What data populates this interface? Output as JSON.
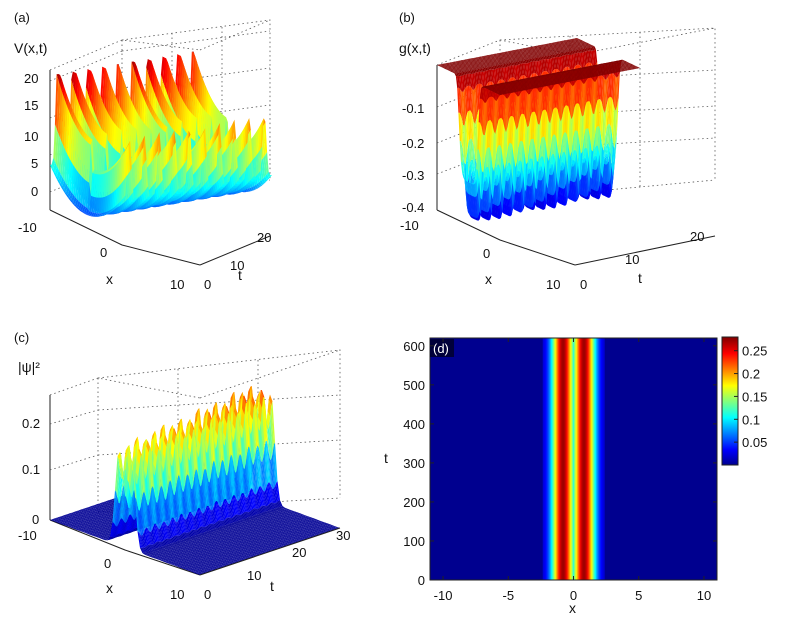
{
  "chart_data": [
    {
      "panel": "(a)",
      "type": "surface3d",
      "zlabel": "V(x,t)",
      "xlabel": "x",
      "ylabel": "t",
      "x_ticks": [
        "-10",
        "0",
        "10"
      ],
      "t_ticks": [
        "0",
        "10",
        "20"
      ],
      "z_ticks": [
        "0",
        "5",
        "10",
        "15",
        "20"
      ],
      "xlim": [
        -10,
        10
      ],
      "tlim": [
        0,
        23
      ],
      "zlim": [
        -3,
        22
      ],
      "x_peak_front": [
        21,
        22,
        23,
        22,
        21
      ],
      "x_peak_back": [
        20,
        18,
        17,
        19,
        18
      ],
      "colormap": "jet"
    },
    {
      "panel": "(b)",
      "type": "surface3d",
      "zlabel": "g(x,t)",
      "xlabel": "x",
      "ylabel": "t",
      "x_ticks": [
        "-10",
        "0",
        "10"
      ],
      "t_ticks": [
        "0",
        "10",
        "20"
      ],
      "z_ticks": [
        "-0.1",
        "-0.2",
        "-0.3",
        "-0.4"
      ],
      "xlim": [
        -10,
        10
      ],
      "tlim": [
        0,
        23
      ],
      "zlim": [
        -0.45,
        0
      ],
      "plateau_value": 0,
      "well_min": -0.43,
      "colormap": "jet"
    },
    {
      "panel": "(c)",
      "type": "surface3d",
      "zlabel": "|ψ|²",
      "xlabel": "x",
      "ylabel": "t",
      "x_ticks": [
        "-10",
        "0",
        "10"
      ],
      "t_ticks": [
        "0",
        "10",
        "20",
        "30"
      ],
      "z_ticks": [
        "0",
        "0.1",
        "0.2"
      ],
      "xlim": [
        -10,
        10
      ],
      "tlim": [
        0,
        30
      ],
      "zlim": [
        0,
        0.27
      ],
      "peak_values": [
        0.2,
        0.21,
        0.22,
        0.21,
        0.22,
        0.23,
        0.22,
        0.23,
        0.22,
        0.24,
        0.23,
        0.24,
        0.23,
        0.25,
        0.24,
        0.25,
        0.23
      ],
      "colormap": "jet"
    },
    {
      "panel": "(d)",
      "type": "heatmap",
      "xlabel": "x",
      "ylabel": "t",
      "x_ticks": [
        "-10",
        "-5",
        "0",
        "5",
        "10"
      ],
      "y_ticks": [
        "0",
        "100",
        "200",
        "300",
        "400",
        "500",
        "600"
      ],
      "xlim": [
        -11,
        11
      ],
      "ylim": [
        0,
        620
      ],
      "colorbar_ticks": [
        "0.05",
        "0.1",
        "0.15",
        "0.2",
        "0.25"
      ],
      "colorbar_range": [
        0,
        0.28
      ],
      "stripe_centers": [
        -0.8,
        0.8
      ],
      "stripe_width": 0.85,
      "peak": 0.28,
      "colormap": "jet"
    }
  ]
}
